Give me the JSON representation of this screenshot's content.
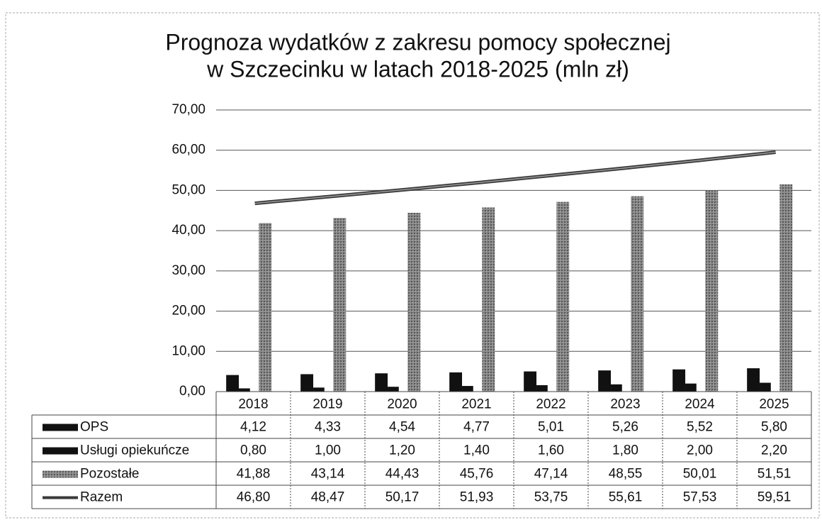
{
  "chart_data": {
    "type": "bar",
    "title": [
      "Prognoza wydatków z zakresu pomocy społecznej",
      "w Szczecinku w latach 2018-2025 (mln zł)"
    ],
    "categories": [
      "2018",
      "2019",
      "2020",
      "2021",
      "2022",
      "2023",
      "2024",
      "2025"
    ],
    "ylim": [
      0,
      70
    ],
    "yticks": [
      {
        "value": 0,
        "label": "0,00"
      },
      {
        "value": 10,
        "label": "10,00"
      },
      {
        "value": 20,
        "label": "20,00"
      },
      {
        "value": 30,
        "label": "30,00"
      },
      {
        "value": 40,
        "label": "40,00"
      },
      {
        "value": 50,
        "label": "50,00"
      },
      {
        "value": 60,
        "label": "60,00"
      },
      {
        "value": 70,
        "label": "70,00"
      }
    ],
    "grid": true,
    "series": [
      {
        "name": "OPS",
        "type": "bar",
        "color": "#111111",
        "values": [
          4.12,
          4.33,
          4.54,
          4.77,
          5.01,
          5.26,
          5.52,
          5.8
        ],
        "value_labels": [
          "4,12",
          "4,33",
          "4,54",
          "4,77",
          "5,01",
          "5,26",
          "5,52",
          "5,80"
        ]
      },
      {
        "name": "Usługi opiekuńcze",
        "type": "bar",
        "color": "#111111",
        "values": [
          0.8,
          1.0,
          1.2,
          1.4,
          1.6,
          1.8,
          2.0,
          2.2
        ],
        "value_labels": [
          "0,80",
          "1,00",
          "1,20",
          "1,40",
          "1,60",
          "1,80",
          "2,00",
          "2,20"
        ]
      },
      {
        "name": "Pozostałe",
        "type": "bar",
        "color": "#8a8a8a",
        "values": [
          41.88,
          43.14,
          44.43,
          45.76,
          47.14,
          48.55,
          50.01,
          51.51
        ],
        "value_labels": [
          "41,88",
          "43,14",
          "44,43",
          "45,76",
          "47,14",
          "48,55",
          "50,01",
          "51,51"
        ]
      },
      {
        "name": "Razem",
        "type": "line",
        "color": "#3a3a3a",
        "values": [
          46.8,
          48.47,
          50.17,
          51.93,
          53.75,
          55.61,
          57.53,
          59.51
        ],
        "value_labels": [
          "46,80",
          "48,47",
          "50,17",
          "51,93",
          "53,75",
          "55,61",
          "57,53",
          "59,51"
        ]
      }
    ]
  }
}
